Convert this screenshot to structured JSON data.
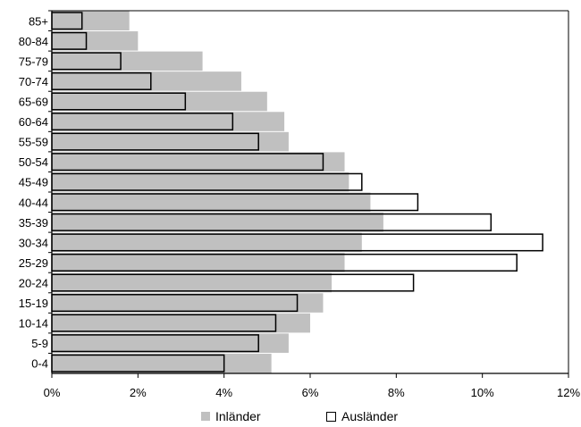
{
  "chart_data": {
    "type": "bar",
    "orientation": "horizontal",
    "categories": [
      "85+",
      "80-84",
      "75-79",
      "70-74",
      "65-69",
      "60-64",
      "55-59",
      "50-54",
      "45-49",
      "40-44",
      "35-39",
      "30-34",
      "25-29",
      "20-24",
      "15-19",
      "10-14",
      "5-9",
      "0-4"
    ],
    "series": [
      {
        "name": "Inländer",
        "color": "#c0c0c0",
        "values": [
          1.8,
          2.0,
          3.5,
          4.4,
          5.0,
          5.4,
          5.5,
          6.8,
          6.9,
          7.4,
          7.7,
          7.2,
          6.8,
          6.5,
          6.3,
          6.0,
          5.5,
          5.1
        ]
      },
      {
        "name": "Ausländer",
        "color": "#ffffff",
        "values": [
          0.7,
          0.8,
          1.6,
          2.3,
          3.1,
          4.2,
          4.8,
          6.3,
          7.2,
          8.5,
          10.2,
          11.4,
          10.8,
          8.4,
          5.7,
          5.2,
          4.8,
          4.0
        ]
      }
    ],
    "xlim": [
      0,
      12
    ],
    "xticks": [
      "0%",
      "2%",
      "4%",
      "6%",
      "8%",
      "10%",
      "12%"
    ],
    "grid": false,
    "legend_position": "bottom"
  },
  "legend": {
    "inlaender": "Inländer",
    "auslaender": "Ausländer"
  }
}
